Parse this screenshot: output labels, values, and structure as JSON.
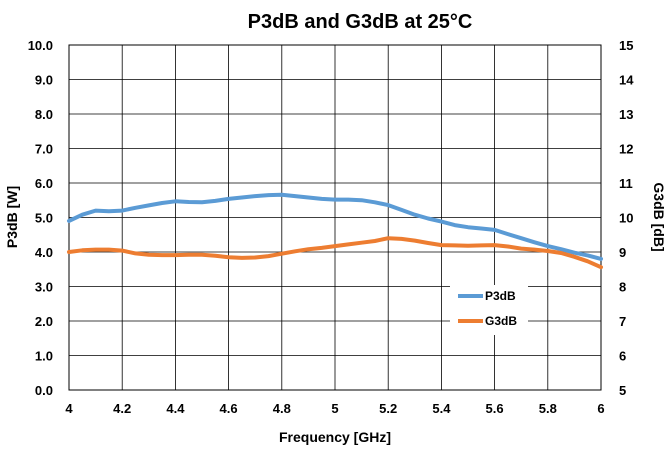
{
  "chart_data": {
    "type": "line",
    "title": "P3dB and G3dB at 25°C",
    "xlabel": "Frequency [GHz]",
    "ylabel_left": "P3dB [W]",
    "ylabel_right": "G3dB [dB]",
    "xlim": [
      4,
      6
    ],
    "ylim_left": [
      0,
      10
    ],
    "ylim_right": [
      5,
      15
    ],
    "x_ticks": [
      "4",
      "4.2",
      "4.4",
      "4.6",
      "4.8",
      "5",
      "5.2",
      "5.4",
      "5.6",
      "5.8",
      "6"
    ],
    "y_left_ticks": [
      "0.0",
      "1.0",
      "2.0",
      "3.0",
      "4.0",
      "5.0",
      "6.0",
      "7.0",
      "8.0",
      "9.0",
      "10.0"
    ],
    "y_right_ticks": [
      "5",
      "6",
      "7",
      "8",
      "9",
      "10",
      "11",
      "12",
      "13",
      "14",
      "15"
    ],
    "grid": true,
    "legend_position": "lower-right",
    "series": [
      {
        "name": "P3dB",
        "axis": "left",
        "color": "#5B9BD5",
        "x": [
          4.0,
          4.05,
          4.1,
          4.15,
          4.2,
          4.25,
          4.3,
          4.35,
          4.4,
          4.45,
          4.5,
          4.55,
          4.6,
          4.65,
          4.7,
          4.75,
          4.8,
          4.85,
          4.9,
          4.95,
          5.0,
          5.05,
          5.1,
          5.15,
          5.2,
          5.25,
          5.3,
          5.35,
          5.4,
          5.45,
          5.5,
          5.55,
          5.6,
          5.65,
          5.7,
          5.75,
          5.8,
          5.85,
          5.9,
          5.95,
          6.0
        ],
        "values": [
          4.9,
          5.08,
          5.2,
          5.18,
          5.2,
          5.28,
          5.35,
          5.42,
          5.47,
          5.45,
          5.44,
          5.48,
          5.54,
          5.58,
          5.62,
          5.65,
          5.66,
          5.62,
          5.58,
          5.54,
          5.52,
          5.52,
          5.5,
          5.44,
          5.36,
          5.22,
          5.08,
          4.97,
          4.88,
          4.78,
          4.72,
          4.68,
          4.64,
          4.52,
          4.4,
          4.28,
          4.17,
          4.08,
          3.98,
          3.9,
          3.8
        ]
      },
      {
        "name": "G3dB",
        "axis": "right",
        "color": "#ED7D31",
        "x": [
          4.0,
          4.05,
          4.1,
          4.15,
          4.2,
          4.25,
          4.3,
          4.35,
          4.4,
          4.45,
          4.5,
          4.55,
          4.6,
          4.65,
          4.7,
          4.75,
          4.8,
          4.85,
          4.9,
          4.95,
          5.0,
          5.05,
          5.1,
          5.15,
          5.2,
          5.25,
          5.3,
          5.35,
          5.4,
          5.45,
          5.5,
          5.55,
          5.6,
          5.65,
          5.7,
          5.75,
          5.8,
          5.85,
          5.9,
          5.95,
          6.0
        ],
        "values": [
          9.0,
          9.05,
          9.07,
          9.07,
          9.04,
          8.96,
          8.92,
          8.91,
          8.91,
          8.92,
          8.92,
          8.89,
          8.85,
          8.83,
          8.84,
          8.88,
          8.95,
          9.02,
          9.08,
          9.12,
          9.17,
          9.22,
          9.27,
          9.32,
          9.4,
          9.38,
          9.33,
          9.26,
          9.2,
          9.19,
          9.18,
          9.19,
          9.2,
          9.16,
          9.1,
          9.07,
          9.03,
          8.97,
          8.86,
          8.73,
          8.56
        ]
      }
    ]
  }
}
